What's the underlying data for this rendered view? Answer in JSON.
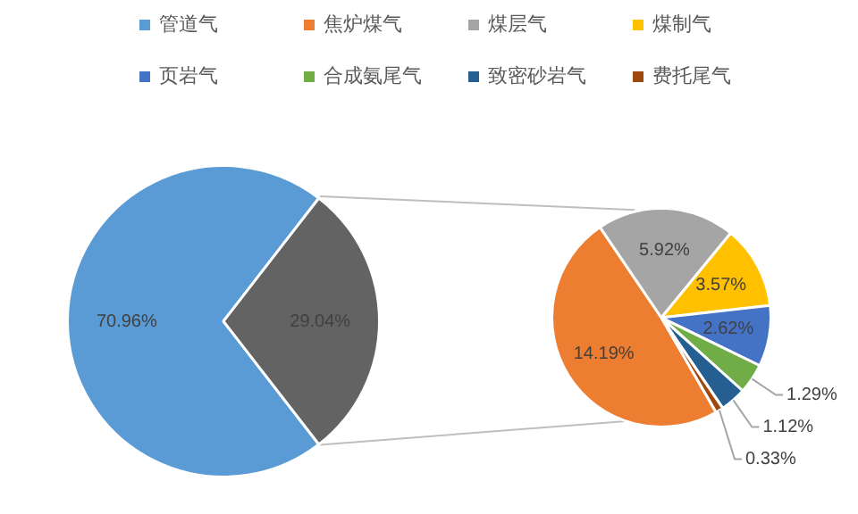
{
  "chart_data": [
    {
      "type": "pie",
      "categories": [
        "管道气",
        null
      ],
      "values": [
        70.96,
        29.04
      ],
      "colors": [
        "#5b9bd5",
        "#636363"
      ],
      "value_labels": [
        "70.96%",
        "29.04%"
      ],
      "legend": "top"
    },
    {
      "type": "pie",
      "categories": [
        "焦炉煤气",
        "煤层气",
        "煤制气",
        "页岩气",
        "合成氨尾气",
        "致密砂岩气",
        "费托尾气"
      ],
      "values": [
        14.19,
        5.92,
        3.57,
        2.62,
        1.29,
        1.12,
        0.33
      ],
      "colors": [
        "#ed7d31",
        "#a5a5a5",
        "#ffc000",
        "#4472c4",
        "#70ad47",
        "#255e91",
        "#9e480e"
      ],
      "value_labels": [
        "14.19%",
        "5.92%",
        "3.57%",
        "2.62%",
        "1.29%",
        "1.12%",
        "0.33%"
      ],
      "legend": "top"
    }
  ]
}
